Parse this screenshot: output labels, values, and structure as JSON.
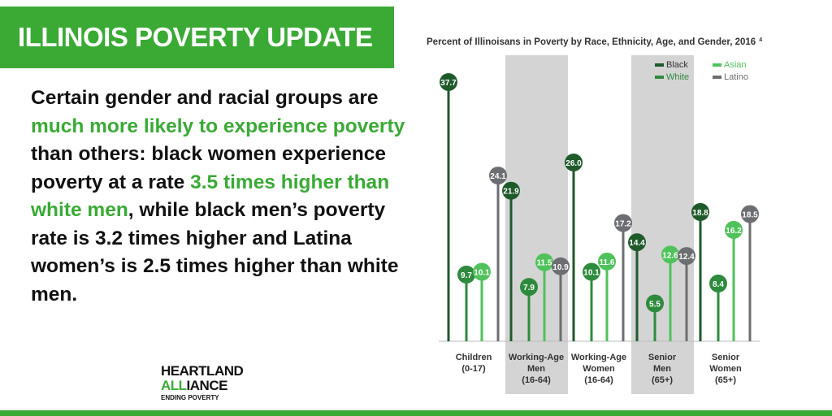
{
  "header": {
    "title": "ILLINOIS POVERTY UPDATE"
  },
  "paragraph": [
    {
      "text": "Certain gender and racial groups are ",
      "color": "#111111"
    },
    {
      "text": "much more likely to experience poverty",
      "color": "#3aaa35"
    },
    {
      "text": " than others: black women experience poverty at a rate ",
      "color": "#111111"
    },
    {
      "text": "3.5 times higher than white men",
      "color": "#3aaa35"
    },
    {
      "text": ", while black men’s poverty rate is 3.2 times higher and Latina women’s is 2.5 times higher than white men.",
      "color": "#111111"
    }
  ],
  "logo": {
    "line1": "HEARTLAND",
    "line2": [
      {
        "text": "ALL",
        "color": "#3aaa35"
      },
      {
        "text": "IANCE",
        "color": "#111111"
      }
    ],
    "tagline": "ENDING POVERTY"
  },
  "chart_data": {
    "type": "lollipop",
    "title": "Percent of Illinoisans in Poverty by Race, Ethnicity, Age, and Gender, 2016",
    "title_note": "4",
    "categories": [
      [
        "Children",
        "(0-17)"
      ],
      [
        "Working-Age",
        "Men",
        "(16-64)"
      ],
      [
        "Working-Age",
        "Women",
        "(16-64)"
      ],
      [
        "Senior",
        "Men",
        "(65+)"
      ],
      [
        "Senior",
        "Women",
        "(65+)"
      ]
    ],
    "series": [
      {
        "name": "Black",
        "color": "#1f5a2b",
        "values": [
          37.7,
          21.9,
          26.0,
          14.4,
          18.8
        ],
        "value_labels": [
          "37.7",
          "21.9",
          "26.0",
          "14.4",
          "18.8"
        ]
      },
      {
        "name": "White",
        "color": "#2e8b3d",
        "values": [
          9.7,
          7.9,
          10.1,
          5.5,
          8.4
        ],
        "value_labels": [
          "9.7",
          "7.9",
          "10.1",
          "5.5",
          "8.4"
        ]
      },
      {
        "name": "Asian",
        "color": "#4fc25b",
        "values": [
          10.1,
          11.5,
          11.6,
          12.6,
          16.2
        ],
        "value_labels": [
          "10.1",
          "11.5",
          "11.6",
          "12.6",
          "16.2"
        ]
      },
      {
        "name": "Latino",
        "color": "#6d6e71",
        "values": [
          24.1,
          10.9,
          17.2,
          12.4,
          18.5
        ],
        "value_labels": [
          "24.1",
          "10.9",
          "17.2",
          "12.4",
          "18.5"
        ]
      }
    ]
  }
}
